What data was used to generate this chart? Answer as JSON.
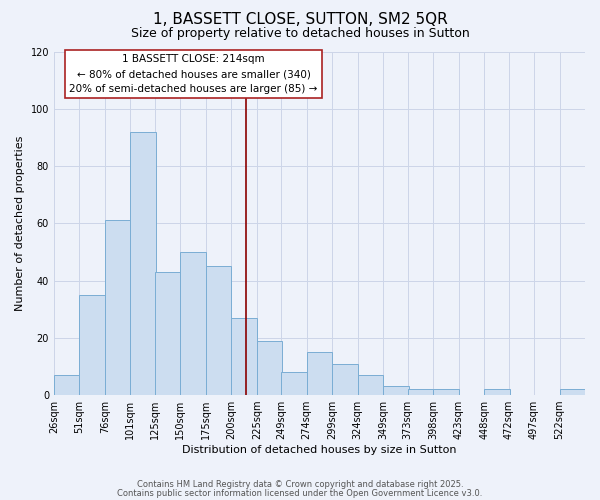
{
  "title": "1, BASSETT CLOSE, SUTTON, SM2 5QR",
  "subtitle": "Size of property relative to detached houses in Sutton",
  "xlabel": "Distribution of detached houses by size in Sutton",
  "ylabel": "Number of detached properties",
  "bar_labels": [
    "26sqm",
    "51sqm",
    "76sqm",
    "101sqm",
    "125sqm",
    "150sqm",
    "175sqm",
    "200sqm",
    "225sqm",
    "249sqm",
    "274sqm",
    "299sqm",
    "324sqm",
    "349sqm",
    "373sqm",
    "398sqm",
    "423sqm",
    "448sqm",
    "472sqm",
    "497sqm",
    "522sqm"
  ],
  "bar_values": [
    7,
    35,
    61,
    92,
    43,
    50,
    45,
    27,
    19,
    8,
    15,
    11,
    7,
    3,
    2,
    2,
    0,
    2,
    0,
    0,
    2
  ],
  "bar_color": "#ccddf0",
  "bar_edge_color": "#7aadd4",
  "vline_x_label": "225sqm",
  "vline_label": "1 BASSETT CLOSE: 214sqm",
  "annotation_line1": "← 80% of detached houses are smaller (340)",
  "annotation_line2": "20% of semi-detached houses are larger (85) →",
  "ylim": [
    0,
    120
  ],
  "yticks": [
    0,
    20,
    40,
    60,
    80,
    100,
    120
  ],
  "grid_color": "#ccd5e8",
  "bg_color": "#eef2fa",
  "footer_line1": "Contains HM Land Registry data © Crown copyright and database right 2025.",
  "footer_line2": "Contains public sector information licensed under the Open Government Licence v3.0.",
  "title_fontsize": 11,
  "subtitle_fontsize": 9,
  "axis_label_fontsize": 8,
  "tick_fontsize": 7,
  "annotation_fontsize": 7.5,
  "footer_fontsize": 6
}
